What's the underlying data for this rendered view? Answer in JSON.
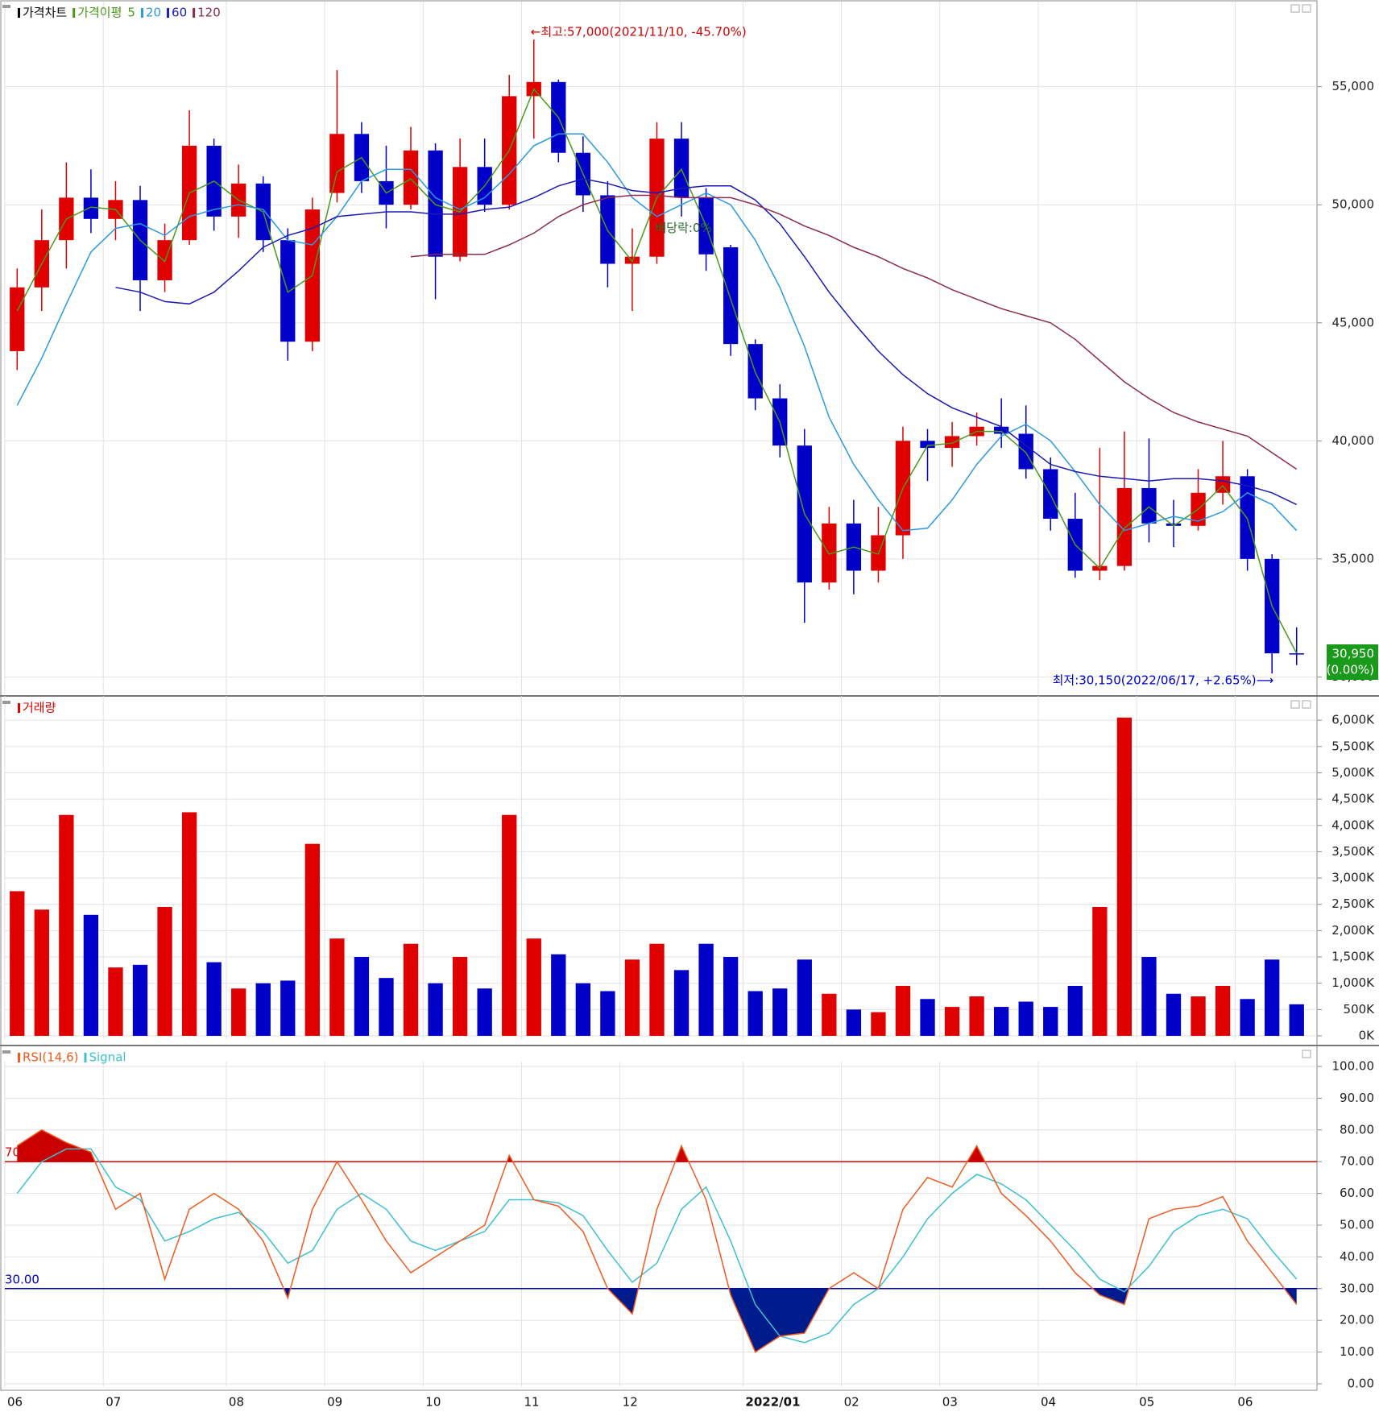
{
  "chart_data": [
    {
      "type": "candlestick",
      "title": "가격차트",
      "ma_title": "가격이평",
      "up_color": "#e00000",
      "down_color": "#0000c8",
      "open": [
        43800,
        46500,
        48500,
        50300,
        49400,
        50200,
        46800,
        48500,
        52500,
        49500,
        50900,
        48500,
        44200,
        50500,
        53000,
        51000,
        50000,
        52300,
        47800,
        51600,
        50000,
        54600,
        55200,
        52200,
        50400,
        47500,
        47800,
        52800,
        50300,
        48200,
        44100,
        41800,
        39800,
        34000,
        36500,
        34500,
        36000,
        40000,
        39700,
        40200,
        40600,
        40300,
        38800,
        36700,
        34500,
        34700,
        38000,
        36500,
        36400,
        37800,
        38500,
        35000,
        31000
      ],
      "high": [
        47300,
        49800,
        51800,
        51500,
        51000,
        50800,
        49200,
        54000,
        52800,
        51700,
        51200,
        49000,
        50300,
        55700,
        53500,
        52500,
        53300,
        52600,
        52800,
        52800,
        55500,
        57000,
        55300,
        52900,
        51000,
        49000,
        53500,
        53500,
        50700,
        48300,
        44300,
        42400,
        40500,
        37200,
        37500,
        37200,
        40600,
        40500,
        40800,
        41200,
        41800,
        41500,
        39300,
        37800,
        39700,
        40400,
        40100,
        37500,
        38800,
        40000,
        38800,
        35200,
        32100
      ],
      "low": [
        43000,
        45500,
        47300,
        48800,
        48500,
        45500,
        46300,
        48300,
        48900,
        48600,
        48000,
        43400,
        43800,
        50100,
        50500,
        49000,
        49800,
        46000,
        47600,
        49700,
        49800,
        52800,
        51800,
        49700,
        46500,
        45500,
        47500,
        49500,
        47200,
        43600,
        41300,
        39300,
        32300,
        33700,
        33500,
        34000,
        35000,
        38300,
        38900,
        39800,
        39700,
        38400,
        36200,
        34200,
        34100,
        34500,
        35700,
        35500,
        36200,
        37300,
        34500,
        30150,
        30500
      ],
      "close": [
        46500,
        48500,
        50300,
        49400,
        50200,
        46800,
        48500,
        52500,
        49500,
        50900,
        48500,
        44200,
        49800,
        53000,
        51000,
        50000,
        52300,
        47800,
        51600,
        50000,
        54600,
        55200,
        52200,
        50400,
        47500,
        47800,
        52800,
        50300,
        47900,
        44100,
        41800,
        39800,
        34000,
        36500,
        34500,
        36000,
        40000,
        39700,
        40200,
        40600,
        40300,
        38800,
        36700,
        34500,
        34700,
        38000,
        36500,
        36400,
        37800,
        38500,
        35000,
        31000,
        30950
      ],
      "series": [
        {
          "name": "5",
          "color": "#4a9a1a",
          "values": [
            45500,
            47500,
            49400,
            49900,
            49800,
            48500,
            47600,
            50500,
            51000,
            50200,
            49700,
            46300,
            47000,
            51400,
            52000,
            50500,
            51100,
            50000,
            49700,
            50800,
            52300,
            54900,
            53700,
            51300,
            48900,
            47600,
            50300,
            51500,
            49100,
            46000,
            42900,
            40800,
            36900,
            35200,
            35500,
            35200,
            38000,
            39800,
            39900,
            40400,
            40400,
            39500,
            37700,
            35600,
            34600,
            36300,
            37200,
            36400,
            37100,
            38100,
            36700,
            33000,
            31000
          ]
        },
        {
          "name": "20",
          "color": "#2a9ae0",
          "values": [
            41500,
            43500,
            45800,
            48000,
            49000,
            49200,
            48700,
            49500,
            49800,
            50000,
            49800,
            48500,
            48300,
            49500,
            51000,
            51500,
            51500,
            50300,
            49800,
            50300,
            51300,
            52500,
            53000,
            53000,
            51800,
            50300,
            49500,
            50000,
            50500,
            50000,
            48500,
            46500,
            44000,
            41000,
            39000,
            37500,
            36200,
            36300,
            37500,
            39000,
            40200,
            40700,
            40000,
            38700,
            37300,
            36200,
            36500,
            36800,
            36600,
            37000,
            37800,
            37300,
            36200
          ]
        },
        {
          "name": "60",
          "color": "#1a1ab4",
          "values": [
            null,
            null,
            null,
            null,
            46500,
            46300,
            45900,
            45800,
            46300,
            47200,
            48200,
            48700,
            49000,
            49500,
            49600,
            49700,
            49700,
            49600,
            49600,
            49800,
            49900,
            50300,
            50800,
            51100,
            50900,
            50600,
            50500,
            50700,
            50800,
            50800,
            50200,
            49200,
            47800,
            46300,
            45000,
            43800,
            42800,
            42000,
            41400,
            41000,
            40600,
            39800,
            39000,
            38700,
            38500,
            38400,
            38300,
            38400,
            38400,
            38300,
            38100,
            37800,
            37300
          ]
        },
        {
          "name": "120",
          "color": "#8b2a50",
          "values": [
            null,
            null,
            null,
            null,
            null,
            null,
            null,
            null,
            null,
            null,
            null,
            null,
            null,
            null,
            null,
            null,
            47800,
            47900,
            47900,
            47900,
            48300,
            48800,
            49500,
            50000,
            50300,
            50400,
            50400,
            50300,
            50300,
            50300,
            50000,
            49600,
            49100,
            48700,
            48200,
            47800,
            47300,
            46900,
            46400,
            46000,
            45600,
            45300,
            45000,
            44300,
            43400,
            42500,
            41800,
            41200,
            40800,
            40500,
            40200,
            39500,
            38800
          ]
        }
      ],
      "ylim": [
        29400,
        58400
      ],
      "yticks": [
        {
          "value": 30000,
          "label": "30,000"
        },
        {
          "value": 35000,
          "label": "35,000"
        },
        {
          "value": 40000,
          "label": "40,000"
        },
        {
          "value": 45000,
          "label": "45,000"
        },
        {
          "value": 50000,
          "label": "50,000"
        },
        {
          "value": 55000,
          "label": "55,000"
        }
      ],
      "grid": true,
      "annotations": {
        "high": "←최고:57,000(2021/11/10, -45.70%)",
        "low": "최저:30,150(2022/06/17, +2.65%)⟶",
        "dividend": "배당락:0%"
      },
      "last_price": {
        "price": "30,950",
        "change": "(0.00%)",
        "color": "#1a9a1a"
      }
    },
    {
      "type": "bar",
      "title": "거래량",
      "color": "#e00000",
      "values": [
        2750,
        2400,
        4200,
        2300,
        1300,
        1350,
        2450,
        4250,
        1400,
        900,
        1000,
        1050,
        3650,
        1850,
        1500,
        1100,
        1750,
        1000,
        1500,
        900,
        4200,
        1850,
        1550,
        1000,
        850,
        1450,
        1750,
        1250,
        1750,
        1500,
        850,
        900,
        1450,
        800,
        500,
        450,
        950,
        700,
        550,
        750,
        550,
        650,
        550,
        950,
        2450,
        6050,
        1500,
        800,
        750,
        950,
        700,
        1450,
        600
      ],
      "ylim": [
        0,
        6370
      ],
      "yticks": [
        {
          "value": 0,
          "label": "0K"
        },
        {
          "value": 500,
          "label": "500K"
        },
        {
          "value": 1000,
          "label": "1,000K"
        },
        {
          "value": 1500,
          "label": "1,500K"
        },
        {
          "value": 2000,
          "label": "2,000K"
        },
        {
          "value": 2500,
          "label": "2,500K"
        },
        {
          "value": 3000,
          "label": "3,000K"
        },
        {
          "value": 3500,
          "label": "3,500K"
        },
        {
          "value": 4000,
          "label": "4,000K"
        },
        {
          "value": 4500,
          "label": "4,500K"
        },
        {
          "value": 5000,
          "label": "5,000K"
        },
        {
          "value": 5500,
          "label": "5,500K"
        },
        {
          "value": 6000,
          "label": "6,000K"
        }
      ],
      "grid": true
    },
    {
      "type": "line",
      "categories": [
        "06",
        null,
        null,
        null,
        "07",
        null,
        null,
        null,
        null,
        "08",
        null,
        null,
        null,
        "09",
        null,
        null,
        null,
        "10",
        null,
        null,
        null,
        "11",
        null,
        null,
        null,
        "12",
        null,
        null,
        null,
        null,
        "2022/01",
        null,
        null,
        null,
        "02",
        null,
        null,
        null,
        "03",
        null,
        null,
        null,
        "04",
        null,
        null,
        null,
        "05",
        null,
        null,
        null,
        "06",
        null,
        null
      ],
      "series": [
        {
          "name": "RSI(14,6)",
          "color": "#f05a1e",
          "values": [
            75,
            80,
            76,
            73,
            55,
            60,
            33,
            55,
            60,
            55,
            45,
            27,
            55,
            70,
            58,
            45,
            35,
            40,
            45,
            50,
            72,
            58,
            56,
            48,
            30,
            22,
            55,
            75,
            58,
            28,
            10,
            15,
            16,
            30,
            35,
            30,
            55,
            65,
            62,
            75,
            60,
            53,
            45,
            35,
            28,
            25,
            52,
            55,
            56,
            59,
            45,
            35,
            25
          ]
        },
        {
          "name": "Signal",
          "color": "#3cc0d0",
          "values": [
            60,
            70,
            74,
            74,
            62,
            58,
            45,
            48,
            52,
            54,
            48,
            38,
            42,
            55,
            60,
            55,
            45,
            42,
            45,
            48,
            58,
            58,
            57,
            53,
            42,
            32,
            38,
            55,
            62,
            45,
            25,
            15,
            13,
            16,
            25,
            30,
            40,
            52,
            60,
            66,
            63,
            58,
            50,
            42,
            33,
            29,
            37,
            48,
            53,
            55,
            52,
            42,
            33
          ]
        }
      ],
      "ref_lines": [
        {
          "value": 70,
          "label": "70.00",
          "color": "#e00000"
        },
        {
          "value": 30,
          "label": "30.00",
          "color": "#0000b4"
        }
      ],
      "fill_colors": {
        "above": "#c80000",
        "below": "#001c8c"
      },
      "ylim": [
        0,
        100
      ],
      "yticks": [
        {
          "value": 0,
          "label": "0.00"
        },
        {
          "value": 10,
          "label": "10.00"
        },
        {
          "value": 20,
          "label": "20.00"
        },
        {
          "value": 30,
          "label": "30.00"
        },
        {
          "value": 40,
          "label": "40.00"
        },
        {
          "value": 50,
          "label": "50.00"
        },
        {
          "value": 60,
          "label": "60.00"
        },
        {
          "value": 70,
          "label": "70.00"
        },
        {
          "value": 80,
          "label": "80.00"
        },
        {
          "value": 90,
          "label": "90.00"
        },
        {
          "value": 100,
          "label": "100.00"
        }
      ],
      "grid": true
    }
  ]
}
